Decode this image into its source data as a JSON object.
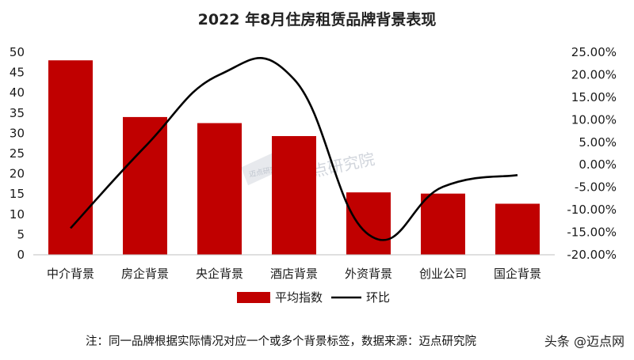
{
  "chart_data": {
    "type": "bar",
    "title": "2022 年8月住房租赁品牌背景表现",
    "categories": [
      "中介背景",
      "房企背景",
      "央企背景",
      "酒店背景",
      "外资背景",
      "创业公司",
      "国企背景"
    ],
    "series": [
      {
        "name": "平均指数",
        "type": "bar",
        "axis": "left",
        "values": [
          48,
          34,
          32.5,
          29.3,
          15.4,
          15.1,
          12.6
        ]
      },
      {
        "name": "环比",
        "type": "line",
        "axis": "right",
        "smooth": true,
        "values": [
          -14.1,
          4.0,
          20.0,
          19.0,
          -15.5,
          -4.9,
          -2.3
        ]
      }
    ],
    "y_left": {
      "min": 0,
      "max": 50,
      "step": 5,
      "ticks": [
        "0",
        "5",
        "10",
        "15",
        "20",
        "25",
        "30",
        "35",
        "40",
        "45",
        "50"
      ]
    },
    "y_right": {
      "min": -20,
      "max": 25,
      "step": 5,
      "ticks": [
        "-20.00%",
        "-15.00%",
        "-10.00%",
        "-5.00%",
        "0.00%",
        "5.00%",
        "10.00%",
        "15.00%",
        "20.00%",
        "25.00%"
      ]
    },
    "legend_position": "bottom",
    "grid": false,
    "colors": {
      "bar": "#c00000",
      "line": "#000000"
    }
  },
  "note": "注：同一品牌根据实际情况对应一个或多个背景标签，数据来源：迈点研究院",
  "source_tag": "头条 @迈点网",
  "watermark": {
    "text": "迈点研究院",
    "logo_text": "迈点研究院"
  }
}
